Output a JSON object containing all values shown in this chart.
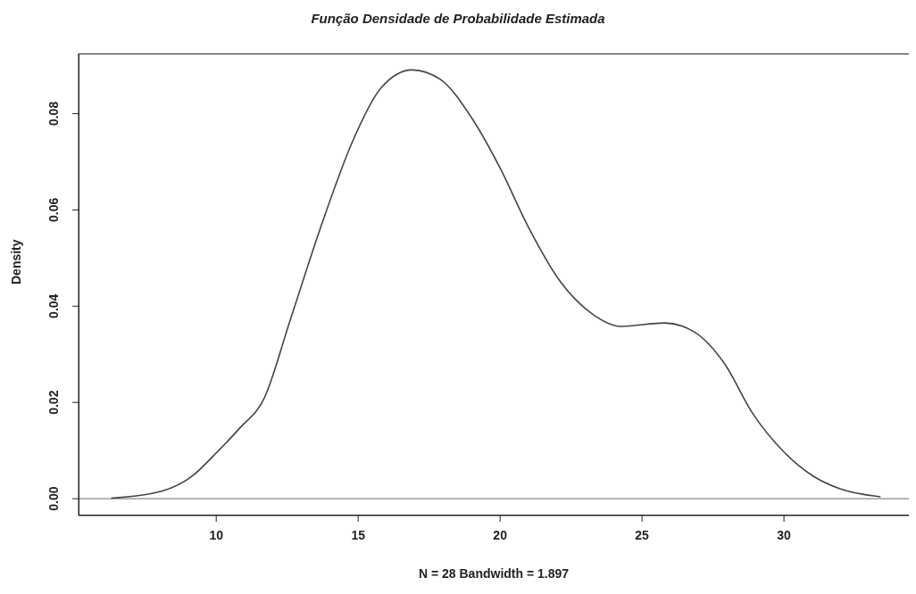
{
  "chart_data": {
    "type": "line",
    "title": "Função Densidade de Probabilidade Estimada",
    "xlabel": "N = 28   Bandwidth = 1.897",
    "ylabel": "Density",
    "x": [
      6.3,
      8.1,
      9.2,
      9.9,
      10.8,
      11.7,
      12.6,
      13.75,
      14.8,
      15.8,
      16.9,
      17.9,
      19.0,
      20.0,
      21.0,
      22.1,
      23.2,
      24.25,
      25.8,
      26.85,
      27.9,
      28.9,
      30.0,
      31.0,
      32.0,
      33.4
    ],
    "values": [
      0.0001,
      0.0016,
      0.0049,
      0.0089,
      0.0145,
      0.021,
      0.037,
      0.0576,
      0.0742,
      0.0853,
      0.0891,
      0.0871,
      0.0791,
      0.0687,
      0.0564,
      0.0453,
      0.0386,
      0.0358,
      0.0365,
      0.0346,
      0.0281,
      0.0177,
      0.0097,
      0.0048,
      0.002,
      0.0004
    ],
    "color": "#444444",
    "marker": "none",
    "xlim": [
      5.15,
      34.4
    ],
    "xticks": [
      10,
      15,
      20,
      25,
      30
    ],
    "ylim": [
      -0.0035,
      0.0925
    ],
    "yticks": [
      {
        "value": 0,
        "label": "0.00"
      },
      {
        "value": 0.02,
        "label": "0.02"
      },
      {
        "value": 0.04,
        "label": "0.04"
      },
      {
        "value": 0.06,
        "label": "0.06"
      },
      {
        "value": 0.08,
        "label": "0.08"
      }
    ],
    "ref_lines": [
      {
        "axis": "y",
        "value": 0,
        "color": "#888888"
      }
    ]
  }
}
